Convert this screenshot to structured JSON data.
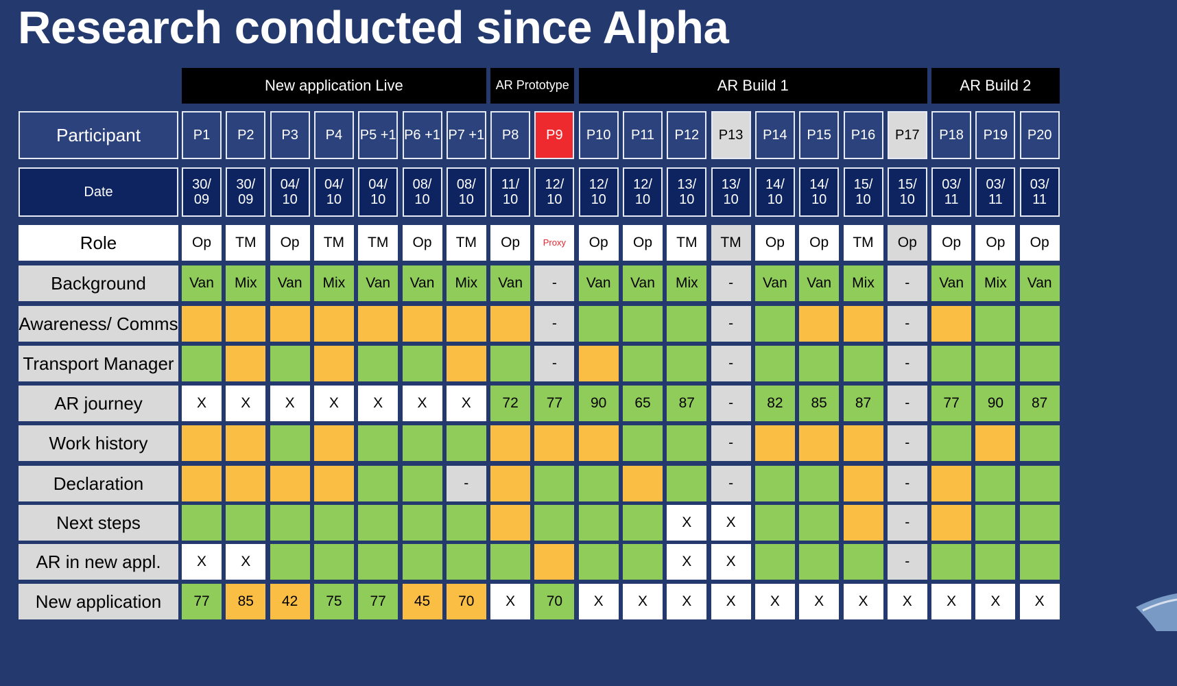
{
  "title": "Research conducted since Alpha",
  "colors": {
    "background": "#24396d",
    "green": "#8fcc5a",
    "orange": "#fbbe45",
    "grey": "#d9d9d9",
    "white": "#ffffff",
    "red": "#ee2a2f",
    "header_blue": "#2c427c",
    "date_blue": "#0d2461"
  },
  "groups": [
    {
      "label": "New application Live",
      "span": 7
    },
    {
      "label": "AR Prototype",
      "span": 2
    },
    {
      "label": "AR Build 1",
      "span": 8
    },
    {
      "label": "AR Build 2",
      "span": 3
    }
  ],
  "participant_label": "Participant",
  "date_label": "Date",
  "participants": [
    {
      "id": "P1",
      "date": "30/ 09",
      "style": "normal"
    },
    {
      "id": "P2",
      "date": "30/ 09",
      "style": "normal"
    },
    {
      "id": "P3",
      "date": "04/ 10",
      "style": "normal"
    },
    {
      "id": "P4",
      "date": "04/ 10",
      "style": "normal"
    },
    {
      "id": "P5 +1",
      "date": "04/ 10",
      "style": "normal"
    },
    {
      "id": "P6 +1",
      "date": "08/ 10",
      "style": "normal"
    },
    {
      "id": "P7 +1",
      "date": "08/ 10",
      "style": "normal"
    },
    {
      "id": "P8",
      "date": "11/ 10",
      "style": "normal"
    },
    {
      "id": "P9",
      "date": "12/ 10",
      "style": "red"
    },
    {
      "id": "P10",
      "date": "12/ 10",
      "style": "normal"
    },
    {
      "id": "P11",
      "date": "12/ 10",
      "style": "normal"
    },
    {
      "id": "P12",
      "date": "13/ 10",
      "style": "normal"
    },
    {
      "id": "P13",
      "date": "13/ 10",
      "style": "light"
    },
    {
      "id": "P14",
      "date": "14/ 10",
      "style": "normal"
    },
    {
      "id": "P15",
      "date": "14/ 10",
      "style": "normal"
    },
    {
      "id": "P16",
      "date": "15/ 10",
      "style": "normal"
    },
    {
      "id": "P17",
      "date": "15/ 10",
      "style": "light"
    },
    {
      "id": "P18",
      "date": "03/ 11",
      "style": "normal"
    },
    {
      "id": "P19",
      "date": "03/ 11",
      "style": "normal"
    },
    {
      "id": "P20",
      "date": "03/ 11",
      "style": "normal"
    }
  ],
  "rows": [
    {
      "label": "Role",
      "label_style": "white",
      "cells": [
        [
          "w",
          "Op"
        ],
        [
          "w",
          "TM"
        ],
        [
          "w",
          "Op"
        ],
        [
          "w",
          "TM"
        ],
        [
          "w",
          "TM"
        ],
        [
          "w",
          "Op"
        ],
        [
          "w",
          "TM"
        ],
        [
          "w",
          "Op"
        ],
        [
          "p",
          "Proxy"
        ],
        [
          "w",
          "Op"
        ],
        [
          "w",
          "Op"
        ],
        [
          "w",
          "TM"
        ],
        [
          "gy",
          "TM"
        ],
        [
          "w",
          "Op"
        ],
        [
          "w",
          "Op"
        ],
        [
          "w",
          "TM"
        ],
        [
          "gy",
          "Op"
        ],
        [
          "w",
          "Op"
        ],
        [
          "w",
          "Op"
        ],
        [
          "w",
          "Op"
        ]
      ]
    },
    {
      "label": "Background",
      "cells": [
        [
          "g",
          "Van"
        ],
        [
          "g",
          "Mix"
        ],
        [
          "g",
          "Van"
        ],
        [
          "g",
          "Mix"
        ],
        [
          "g",
          "Van"
        ],
        [
          "g",
          "Van"
        ],
        [
          "g",
          "Mix"
        ],
        [
          "g",
          "Van"
        ],
        [
          "gy",
          "-"
        ],
        [
          "g",
          "Van"
        ],
        [
          "g",
          "Van"
        ],
        [
          "g",
          "Mix"
        ],
        [
          "gy",
          "-"
        ],
        [
          "g",
          "Van"
        ],
        [
          "g",
          "Van"
        ],
        [
          "g",
          "Mix"
        ],
        [
          "gy",
          "-"
        ],
        [
          "g",
          "Van"
        ],
        [
          "g",
          "Mix"
        ],
        [
          "g",
          "Van"
        ]
      ]
    },
    {
      "label": "Awareness/ Comms",
      "cells": [
        [
          "o",
          ""
        ],
        [
          "o",
          ""
        ],
        [
          "o",
          ""
        ],
        [
          "o",
          ""
        ],
        [
          "o",
          ""
        ],
        [
          "o",
          ""
        ],
        [
          "o",
          ""
        ],
        [
          "o",
          ""
        ],
        [
          "gy",
          "-"
        ],
        [
          "g",
          ""
        ],
        [
          "g",
          ""
        ],
        [
          "g",
          ""
        ],
        [
          "gy",
          "-"
        ],
        [
          "g",
          ""
        ],
        [
          "o",
          ""
        ],
        [
          "o",
          ""
        ],
        [
          "gy",
          "-"
        ],
        [
          "o",
          ""
        ],
        [
          "g",
          ""
        ],
        [
          "g",
          ""
        ]
      ]
    },
    {
      "label": "Transport Manager",
      "cells": [
        [
          "g",
          ""
        ],
        [
          "o",
          ""
        ],
        [
          "g",
          ""
        ],
        [
          "o",
          ""
        ],
        [
          "g",
          ""
        ],
        [
          "g",
          ""
        ],
        [
          "o",
          ""
        ],
        [
          "g",
          ""
        ],
        [
          "gy",
          "-"
        ],
        [
          "o",
          ""
        ],
        [
          "g",
          ""
        ],
        [
          "g",
          ""
        ],
        [
          "gy",
          "-"
        ],
        [
          "g",
          ""
        ],
        [
          "g",
          ""
        ],
        [
          "g",
          ""
        ],
        [
          "gy",
          "-"
        ],
        [
          "g",
          ""
        ],
        [
          "g",
          ""
        ],
        [
          "g",
          ""
        ]
      ]
    },
    {
      "label": "AR journey",
      "cells": [
        [
          "w",
          "X"
        ],
        [
          "w",
          "X"
        ],
        [
          "w",
          "X"
        ],
        [
          "w",
          "X"
        ],
        [
          "w",
          "X"
        ],
        [
          "w",
          "X"
        ],
        [
          "w",
          "X"
        ],
        [
          "g",
          "72"
        ],
        [
          "g",
          "77"
        ],
        [
          "g",
          "90"
        ],
        [
          "g",
          "65"
        ],
        [
          "g",
          "87"
        ],
        [
          "gy",
          "-"
        ],
        [
          "g",
          "82"
        ],
        [
          "g",
          "85"
        ],
        [
          "g",
          "87"
        ],
        [
          "gy",
          "-"
        ],
        [
          "g",
          "77"
        ],
        [
          "g",
          "90"
        ],
        [
          "g",
          "87"
        ]
      ]
    },
    {
      "label": "Work history",
      "cells": [
        [
          "o",
          ""
        ],
        [
          "o",
          ""
        ],
        [
          "g",
          ""
        ],
        [
          "o",
          ""
        ],
        [
          "g",
          ""
        ],
        [
          "g",
          ""
        ],
        [
          "g",
          ""
        ],
        [
          "o",
          ""
        ],
        [
          "o",
          ""
        ],
        [
          "o",
          ""
        ],
        [
          "g",
          ""
        ],
        [
          "g",
          ""
        ],
        [
          "gy",
          "-"
        ],
        [
          "o",
          ""
        ],
        [
          "o",
          ""
        ],
        [
          "o",
          ""
        ],
        [
          "gy",
          "-"
        ],
        [
          "g",
          ""
        ],
        [
          "o",
          ""
        ],
        [
          "g",
          ""
        ]
      ]
    },
    {
      "label": "Declaration",
      "cells": [
        [
          "o",
          ""
        ],
        [
          "o",
          ""
        ],
        [
          "o",
          ""
        ],
        [
          "o",
          ""
        ],
        [
          "g",
          ""
        ],
        [
          "g",
          ""
        ],
        [
          "gy",
          "-"
        ],
        [
          "o",
          ""
        ],
        [
          "g",
          ""
        ],
        [
          "g",
          ""
        ],
        [
          "o",
          ""
        ],
        [
          "g",
          ""
        ],
        [
          "gy",
          "-"
        ],
        [
          "g",
          ""
        ],
        [
          "g",
          ""
        ],
        [
          "o",
          ""
        ],
        [
          "gy",
          "-"
        ],
        [
          "o",
          ""
        ],
        [
          "g",
          ""
        ],
        [
          "g",
          ""
        ]
      ]
    },
    {
      "label": "Next steps",
      "cells": [
        [
          "g",
          ""
        ],
        [
          "g",
          ""
        ],
        [
          "g",
          ""
        ],
        [
          "g",
          ""
        ],
        [
          "g",
          ""
        ],
        [
          "g",
          ""
        ],
        [
          "g",
          ""
        ],
        [
          "o",
          ""
        ],
        [
          "g",
          ""
        ],
        [
          "g",
          ""
        ],
        [
          "g",
          ""
        ],
        [
          "w",
          "X"
        ],
        [
          "w",
          "X"
        ],
        [
          "g",
          ""
        ],
        [
          "g",
          ""
        ],
        [
          "o",
          ""
        ],
        [
          "gy",
          "-"
        ],
        [
          "o",
          ""
        ],
        [
          "g",
          ""
        ],
        [
          "g",
          ""
        ]
      ]
    },
    {
      "label": "AR in new appl.",
      "cells": [
        [
          "w",
          "X"
        ],
        [
          "w",
          "X"
        ],
        [
          "g",
          ""
        ],
        [
          "g",
          ""
        ],
        [
          "g",
          ""
        ],
        [
          "g",
          ""
        ],
        [
          "g",
          ""
        ],
        [
          "g",
          ""
        ],
        [
          "o",
          ""
        ],
        [
          "g",
          ""
        ],
        [
          "g",
          ""
        ],
        [
          "w",
          "X"
        ],
        [
          "w",
          "X"
        ],
        [
          "g",
          ""
        ],
        [
          "g",
          ""
        ],
        [
          "g",
          ""
        ],
        [
          "gy",
          "-"
        ],
        [
          "g",
          ""
        ],
        [
          "g",
          ""
        ],
        [
          "g",
          ""
        ]
      ]
    },
    {
      "label": "New application",
      "cells": [
        [
          "g",
          "77"
        ],
        [
          "o",
          "85"
        ],
        [
          "o",
          "42"
        ],
        [
          "g",
          "75"
        ],
        [
          "g",
          "77"
        ],
        [
          "o",
          "45"
        ],
        [
          "o",
          "70"
        ],
        [
          "w",
          "X"
        ],
        [
          "g",
          "70"
        ],
        [
          "w",
          "X"
        ],
        [
          "w",
          "X"
        ],
        [
          "w",
          "X"
        ],
        [
          "w",
          "X"
        ],
        [
          "w",
          "X"
        ],
        [
          "w",
          "X"
        ],
        [
          "w",
          "X"
        ],
        [
          "w",
          "X"
        ],
        [
          "w",
          "X"
        ],
        [
          "w",
          "X"
        ],
        [
          "w",
          "X"
        ]
      ]
    }
  ]
}
